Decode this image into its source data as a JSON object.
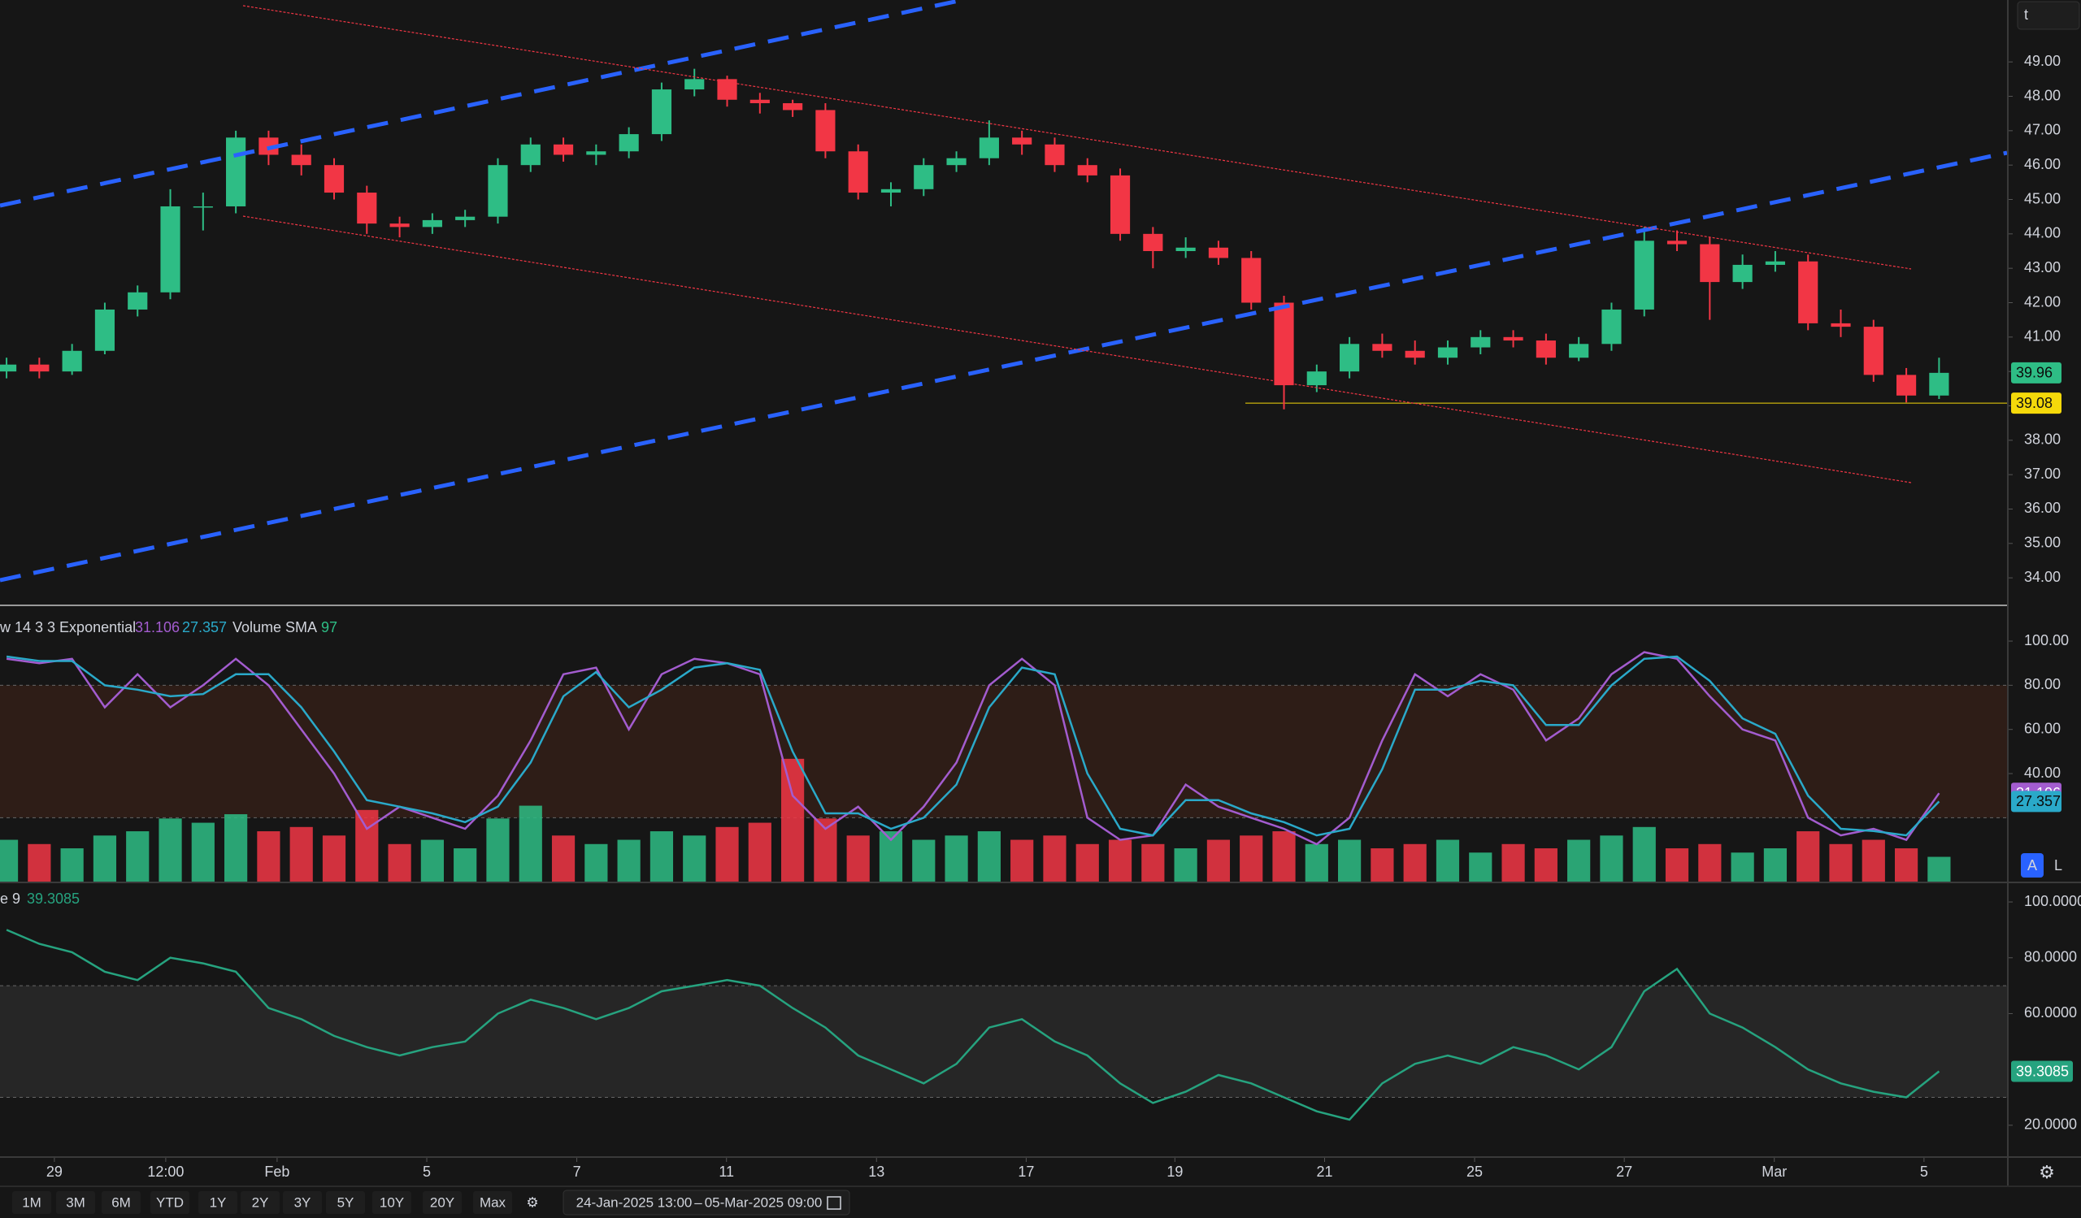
{
  "chart_data": [
    {
      "type": "candlestick",
      "x": [
        0,
        1,
        2,
        3,
        4,
        5,
        6,
        7,
        8,
        9,
        10,
        11,
        12,
        13,
        14,
        15,
        16,
        17,
        18,
        19,
        20,
        21,
        22,
        23,
        24,
        25,
        26,
        27,
        28,
        29,
        30,
        31,
        32,
        33,
        34,
        35,
        36,
        37,
        38,
        39,
        40,
        41,
        42,
        43,
        44,
        45,
        46,
        47,
        48,
        49,
        50,
        51,
        52,
        53,
        54,
        55,
        56,
        57,
        58,
        59
      ],
      "open": [
        40.0,
        40.2,
        40.0,
        40.6,
        41.8,
        42.3,
        44.8,
        44.8,
        46.8,
        46.3,
        46.0,
        45.2,
        44.3,
        44.2,
        44.4,
        44.5,
        46.0,
        46.6,
        46.3,
        46.4,
        46.9,
        48.2,
        48.5,
        47.9,
        47.8,
        47.6,
        46.4,
        45.2,
        45.3,
        46.0,
        46.2,
        46.8,
        46.6,
        46.0,
        45.7,
        44.0,
        43.5,
        43.6,
        43.3,
        42.0,
        39.6,
        40.0,
        40.8,
        40.6,
        40.4,
        40.7,
        41.0,
        40.9,
        40.4,
        40.8,
        41.8,
        43.8,
        43.7,
        42.6,
        43.1,
        43.2,
        41.4,
        41.3,
        39.9,
        39.3
      ],
      "high": [
        40.4,
        40.4,
        40.8,
        42.0,
        42.5,
        45.3,
        45.2,
        47.0,
        47.0,
        46.6,
        46.2,
        45.4,
        44.5,
        44.6,
        44.7,
        46.2,
        46.8,
        46.8,
        46.6,
        47.1,
        48.4,
        48.8,
        48.6,
        48.1,
        47.9,
        47.8,
        46.6,
        45.5,
        46.2,
        46.4,
        47.3,
        47.0,
        46.8,
        46.2,
        45.9,
        44.2,
        43.9,
        43.8,
        43.5,
        42.2,
        40.2,
        41.0,
        41.1,
        40.9,
        40.9,
        41.2,
        41.2,
        41.1,
        41.0,
        42.0,
        44.2,
        44.1,
        43.9,
        43.4,
        43.5,
        43.4,
        41.8,
        41.5,
        40.1,
        40.4
      ],
      "low": [
        39.8,
        39.8,
        39.9,
        40.5,
        41.6,
        42.1,
        44.1,
        44.6,
        46.0,
        45.7,
        45.0,
        44.0,
        43.9,
        44.0,
        44.2,
        44.3,
        45.8,
        46.1,
        46.0,
        46.2,
        46.7,
        48.0,
        47.7,
        47.5,
        47.4,
        46.2,
        45.0,
        44.8,
        45.1,
        45.8,
        46.0,
        46.3,
        45.8,
        45.5,
        43.8,
        43.0,
        43.3,
        43.1,
        41.8,
        38.9,
        39.4,
        39.8,
        40.4,
        40.2,
        40.2,
        40.5,
        40.7,
        40.2,
        40.3,
        40.6,
        41.6,
        43.5,
        41.5,
        42.4,
        42.9,
        41.2,
        41.0,
        39.7,
        39.1,
        39.2
      ],
      "close": [
        40.2,
        40.0,
        40.6,
        41.8,
        42.3,
        44.8,
        44.8,
        46.8,
        46.3,
        46.0,
        45.2,
        44.3,
        44.2,
        44.4,
        44.5,
        46.0,
        46.6,
        46.3,
        46.4,
        46.9,
        48.2,
        48.5,
        47.9,
        47.8,
        47.6,
        46.4,
        45.2,
        45.3,
        46.0,
        46.2,
        46.8,
        46.6,
        46.0,
        45.7,
        44.0,
        43.5,
        43.6,
        43.3,
        42.0,
        39.6,
        40.0,
        40.8,
        40.6,
        40.4,
        40.7,
        41.0,
        40.9,
        40.4,
        40.8,
        41.8,
        43.8,
        43.7,
        42.6,
        43.1,
        43.2,
        41.4,
        41.3,
        39.9,
        39.3,
        39.96
      ],
      "up_color": "#2ebd85",
      "down_color": "#f23645",
      "xlim": [
        -0.2,
        61.1
      ],
      "xticks": [
        {
          "value": 1.46,
          "label": "29"
        },
        {
          "value": 4.86,
          "label": "12:00"
        },
        {
          "value": 8.26,
          "label": "Feb"
        },
        {
          "value": 12.83,
          "label": "5"
        },
        {
          "value": 17.41,
          "label": "7"
        },
        {
          "value": 21.98,
          "label": "11"
        },
        {
          "value": 26.56,
          "label": "13"
        },
        {
          "value": 31.13,
          "label": "17"
        },
        {
          "value": 35.67,
          "label": "19"
        },
        {
          "value": 40.24,
          "label": "21"
        },
        {
          "value": 44.82,
          "label": "25"
        },
        {
          "value": 49.39,
          "label": "27"
        },
        {
          "value": 53.97,
          "label": "Mar"
        },
        {
          "value": 58.54,
          "label": "5"
        }
      ],
      "ylim": [
        33.2,
        50.8
      ],
      "yticks": [
        {
          "value": 34,
          "label": "34.00"
        },
        {
          "value": 35,
          "label": "35.00"
        },
        {
          "value": 36,
          "label": "36.00"
        },
        {
          "value": 37,
          "label": "37.00"
        },
        {
          "value": 38,
          "label": "38.00"
        },
        {
          "value": 39,
          "label": "39.00"
        },
        {
          "value": 40,
          "label": "40.00"
        },
        {
          "value": 41,
          "label": "41.00"
        },
        {
          "value": 42,
          "label": "42.00"
        },
        {
          "value": 43,
          "label": "43.00"
        },
        {
          "value": 44,
          "label": "44.00"
        },
        {
          "value": 45,
          "label": "45.00"
        },
        {
          "value": 46,
          "label": "46.00"
        },
        {
          "value": 47,
          "label": "47.00"
        },
        {
          "value": 48,
          "label": "48.00"
        },
        {
          "value": 49,
          "label": "49.00"
        }
      ],
      "hline": {
        "value": 39.08,
        "label": "39.08",
        "color": "#f5d90a"
      }
    },
    {
      "type": "line",
      "title": "w 14 3 3 Exponential",
      "series": [
        {
          "color": "#a35ccf",
          "values": [
            92,
            90,
            92,
            70,
            85,
            70,
            80,
            92,
            80,
            60,
            40,
            15,
            25,
            20,
            15,
            30,
            55,
            85,
            88,
            60,
            85,
            92,
            90,
            85,
            30,
            15,
            25,
            10,
            25,
            45,
            80,
            92,
            80,
            20,
            10,
            12,
            35,
            25,
            20,
            15,
            8,
            20,
            55,
            85,
            75,
            85,
            78,
            55,
            65,
            85,
            95,
            92,
            75,
            60,
            55,
            20,
            12,
            15,
            10,
            31.106
          ]
        },
        {
          "color": "#2aa9c9",
          "values": [
            93,
            91,
            91,
            80,
            78,
            75,
            76,
            85,
            85,
            70,
            50,
            28,
            25,
            22,
            18,
            25,
            45,
            75,
            86,
            70,
            78,
            88,
            90,
            87,
            50,
            22,
            22,
            15,
            20,
            35,
            70,
            88,
            85,
            40,
            15,
            12,
            28,
            28,
            22,
            18,
            12,
            15,
            42,
            78,
            78,
            82,
            80,
            62,
            62,
            80,
            92,
            93,
            82,
            65,
            58,
            30,
            15,
            14,
            12,
            27.357
          ]
        }
      ],
      "volume": {
        "name": "Volume SMA",
        "sma": 97,
        "sma_color": "#2ebd85",
        "vlim": [
          0,
          650
        ],
        "values": [
          100,
          90,
          80,
          110,
          120,
          150,
          140,
          160,
          120,
          130,
          110,
          170,
          90,
          100,
          80,
          150,
          180,
          110,
          90,
          100,
          120,
          110,
          130,
          140,
          290,
          150,
          110,
          120,
          100,
          110,
          120,
          100,
          110,
          90,
          100,
          90,
          80,
          100,
          110,
          120,
          90,
          100,
          80,
          90,
          100,
          70,
          90,
          80,
          100,
          110,
          130,
          80,
          90,
          70,
          80,
          120,
          90,
          100,
          80,
          60
        ]
      },
      "ylim": [
        -9.3,
        116.2
      ],
      "yticks": [
        {
          "value": 40,
          "label": "40.00"
        },
        {
          "value": 60,
          "label": "60.00"
        },
        {
          "value": 80,
          "label": "80.00"
        },
        {
          "value": 100,
          "label": "100.00"
        }
      ],
      "bands": [
        20,
        80
      ],
      "band_color": "#2e1d17"
    },
    {
      "type": "line",
      "title": "e 9",
      "series": [
        {
          "color": "#26a37f",
          "values": [
            90,
            85,
            82,
            75,
            72,
            80,
            78,
            75,
            62,
            58,
            52,
            48,
            45,
            48,
            50,
            60,
            65,
            62,
            58,
            62,
            68,
            70,
            72,
            70,
            62,
            55,
            45,
            40,
            35,
            42,
            55,
            58,
            50,
            45,
            35,
            28,
            32,
            38,
            35,
            30,
            25,
            22,
            35,
            42,
            45,
            42,
            48,
            45,
            40,
            48,
            68,
            76,
            60,
            55,
            48,
            40,
            35,
            32,
            30,
            39.3085
          ]
        }
      ],
      "ylim": [
        8.6,
        107
      ],
      "yticks": [
        {
          "value": 20,
          "label": "20.0000"
        },
        {
          "value": 60,
          "label": "60.0000"
        },
        {
          "value": 80,
          "label": "80.0000"
        },
        {
          "value": 100,
          "label": "100.0000"
        }
      ],
      "bands": [
        30,
        70
      ],
      "band_color": "#262626"
    }
  ],
  "toolbar": {
    "ranges": [
      "1M",
      "3M",
      "6M",
      "YTD",
      "1Y",
      "2Y",
      "3Y",
      "5Y",
      "10Y",
      "20Y",
      "Max"
    ],
    "date_from": "24-Jan-2025 13:00",
    "range_separator": "–",
    "date_to": "05-Mar-2025 09:00"
  },
  "scale_buttons": [
    "A",
    "L"
  ],
  "corner_label": "t"
}
